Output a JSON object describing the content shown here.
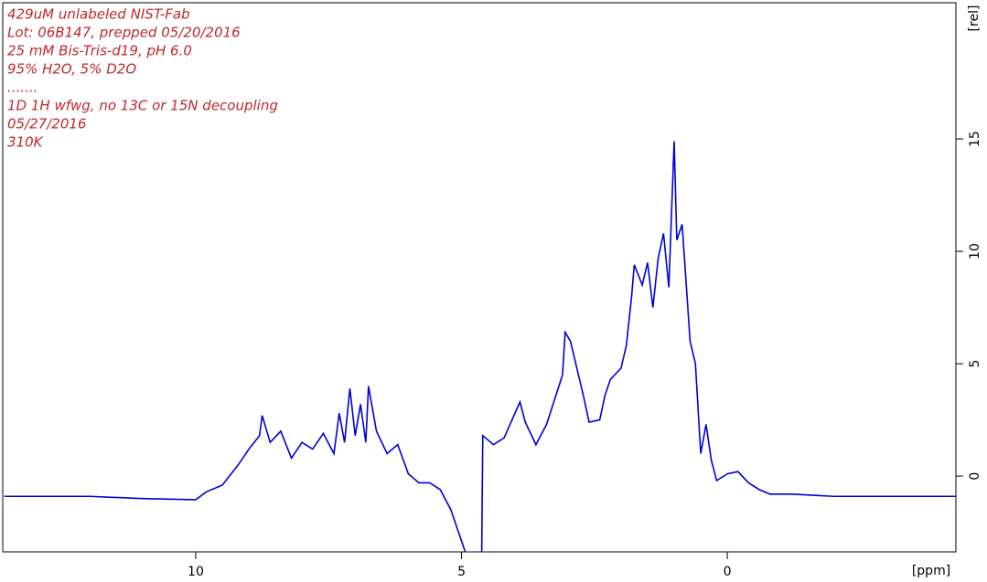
{
  "chart_data": {
    "type": "line",
    "annotations": [
      "429uM unlabeled NIST-Fab",
      "Lot: 06B147, prepped 05/20/2016",
      "25 mM Bis-Tris-d19, pH 6.0",
      "95% H2O, 5% D2O",
      ".......",
      "1D 1H wfwg, no 13C or 15N  decoupling",
      "05/27/2016",
      "310K"
    ],
    "xlabel": "[ppm]",
    "ylabel": "[rel]",
    "xlim": [
      13.63,
      -4.3
    ],
    "ylim": [
      -3.37,
      21.06
    ],
    "xticks": [
      10,
      5,
      0
    ],
    "yticks": [
      0,
      5,
      10,
      15
    ],
    "x": [
      13.6,
      12,
      11,
      10,
      9.8,
      9.5,
      9.2,
      9.0,
      8.8,
      8.75,
      8.6,
      8.4,
      8.2,
      8.0,
      7.8,
      7.6,
      7.4,
      7.3,
      7.2,
      7.1,
      7.0,
      6.9,
      6.8,
      6.75,
      6.6,
      6.4,
      6.2,
      6.0,
      5.8,
      5.6,
      5.4,
      5.2,
      4.93,
      4.8,
      4.62,
      4.6,
      4.4,
      4.2,
      3.9,
      3.8,
      3.6,
      3.4,
      3.1,
      3.05,
      2.95,
      2.8,
      2.7,
      2.6,
      2.4,
      2.3,
      2.2,
      2.0,
      1.9,
      1.8,
      1.75,
      1.6,
      1.5,
      1.4,
      1.3,
      1.2,
      1.1,
      1.0,
      0.95,
      0.85,
      0.7,
      0.6,
      0.5,
      0.4,
      0.3,
      0.2,
      0.0,
      -0.2,
      -0.4,
      -0.6,
      -0.8,
      -1.2,
      -2,
      -3,
      -4.3
    ],
    "series": [
      {
        "color": "#0000d8",
        "values": [
          -0.9,
          -0.9,
          -1.0,
          -1.05,
          -0.7,
          -0.4,
          0.5,
          1.2,
          1.8,
          2.7,
          1.5,
          2.0,
          0.8,
          1.5,
          1.2,
          1.9,
          1.0,
          2.8,
          1.5,
          3.9,
          1.8,
          3.2,
          1.5,
          4.0,
          2.0,
          1.0,
          1.4,
          0.1,
          -0.3,
          -0.3,
          -0.6,
          -1.5,
          -3.37,
          null,
          -3.37,
          1.8,
          1.4,
          1.7,
          3.3,
          2.4,
          1.4,
          2.3,
          4.5,
          6.4,
          6.0,
          4.5,
          3.5,
          2.4,
          2.5,
          3.6,
          4.3,
          4.8,
          5.8,
          8.0,
          9.4,
          8.5,
          9.5,
          7.5,
          9.7,
          10.8,
          8.4,
          14.9,
          10.5,
          11.2,
          6.0,
          5.0,
          1.0,
          2.3,
          0.7,
          -0.2,
          0.1,
          0.2,
          -0.3,
          -0.6,
          -0.8,
          -0.8,
          -0.9,
          -0.9,
          -0.9
        ]
      }
    ]
  }
}
